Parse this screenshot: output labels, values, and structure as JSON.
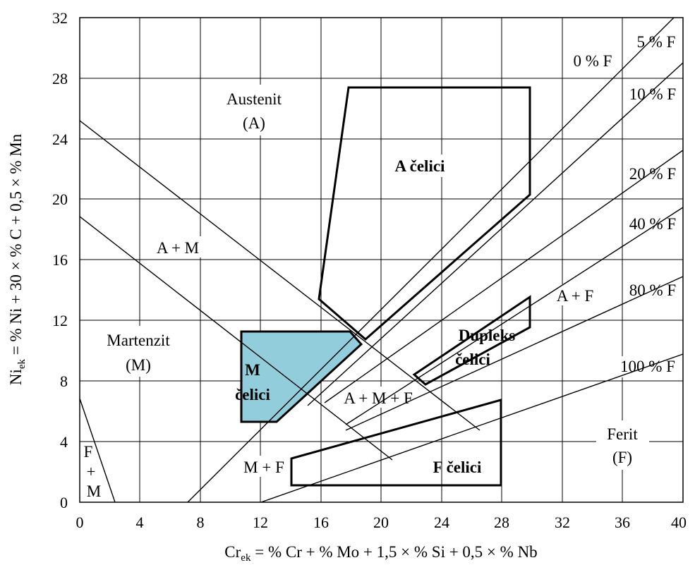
{
  "diagram": {
    "type": "schaeffler-diagram",
    "x_axis": {
      "label_main": "Cr",
      "label_sub": "ek",
      "label_rest": " = % Cr + % Mo + 1,5 × % Si + 0,5 × % Nb",
      "range": [
        0,
        40
      ],
      "ticks": [
        "0",
        "4",
        "8",
        "12",
        "16",
        "20",
        "24",
        "28",
        "32",
        "36",
        "40"
      ]
    },
    "y_axis": {
      "label_main": "Ni",
      "label_sub": "ek",
      "label_rest": " = % Ni + 30 × % C + 0,5 × % Mn",
      "range": [
        0,
        32
      ],
      "ticks": [
        "0",
        "4",
        "8",
        "12",
        "16",
        "20",
        "24",
        "28",
        "32"
      ]
    },
    "grid": true,
    "regions": {
      "austenit": "Austenit",
      "austenit_abbr": "(A)",
      "martenzit": "Martenzit",
      "martenzit_abbr": "(M)",
      "ferit": "Ferit",
      "ferit_abbr": "(F)",
      "a_plus_m": "A + M",
      "a_plus_f": "A + F",
      "a_m_f": "A + M + F",
      "m_plus_f": "M + F",
      "f_m_top": "F",
      "f_m_mid": "+",
      "f_m_bot": "M"
    },
    "ferrite_lines": [
      "0 % F",
      "5 % F",
      "10 % F",
      "20 % F",
      "40 % F",
      "80 % F",
      "100 % F"
    ],
    "steel_zones": {
      "a_celici": "A čelici",
      "m_celici_1": "M",
      "m_celici_2": "čelici",
      "dupleks_1": "Dupleks",
      "dupleks_2": "čelici",
      "f_celici": "F čelici"
    },
    "colors": {
      "m_steels_fill": "#92CDDC",
      "lines": "#000000"
    }
  }
}
